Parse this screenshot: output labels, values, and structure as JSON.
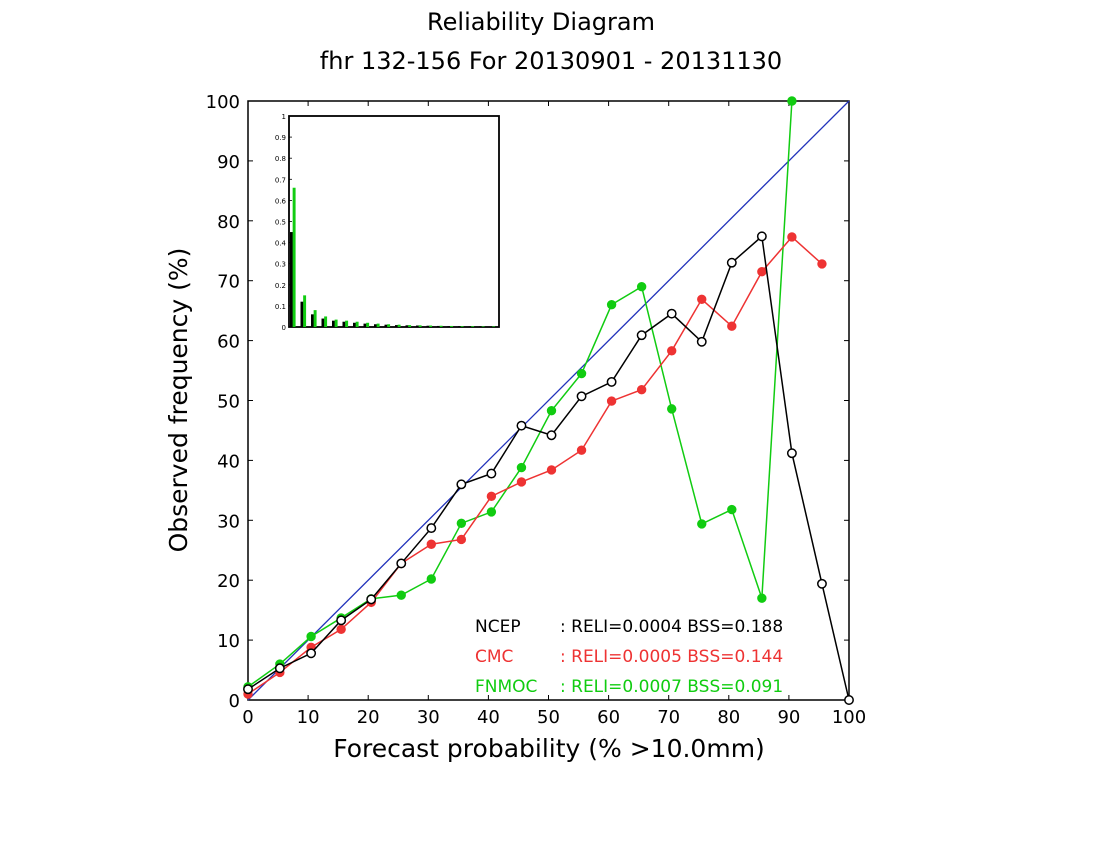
{
  "chart_data": {
    "type": "line",
    "title": "Reliability Diagram",
    "subtitle": "fhr 132-156 For 20130901 - 20131130",
    "xlabel": "Forecast probability (% >10.0mm)",
    "ylabel": "Observed frequency (%)",
    "xlim": [
      0,
      100
    ],
    "ylim": [
      0,
      100
    ],
    "xticks": [
      "0",
      "10",
      "20",
      "30",
      "40",
      "50",
      "60",
      "70",
      "80",
      "90",
      "100"
    ],
    "yticks": [
      "0",
      "10",
      "20",
      "30",
      "40",
      "50",
      "60",
      "70",
      "80",
      "90",
      "100"
    ],
    "diagonal_color": "#2233bb",
    "series": [
      {
        "name": "NCEP",
        "stats": ": RELI=0.0004  BSS=0.188",
        "color": "#000000",
        "marker": "open-circle",
        "x": [
          0,
          5.3,
          10.5,
          15.5,
          20.5,
          25.5,
          30.5,
          35.5,
          40.5,
          45.5,
          50.5,
          55.5,
          60.5,
          65.5,
          70.5,
          75.5,
          80.5,
          85.5,
          90.5,
          95.5,
          100
        ],
        "y": [
          1.8,
          5.3,
          7.8,
          13.3,
          16.8,
          22.8,
          28.7,
          36.0,
          37.8,
          45.8,
          44.2,
          50.7,
          53.1,
          60.9,
          64.5,
          59.8,
          73.0,
          77.4,
          41.2,
          19.4,
          0.0
        ]
      },
      {
        "name": "CMC",
        "stats": ": RELI=0.0005  BSS=0.144",
        "color": "#ee3333",
        "marker": "filled-circle",
        "x": [
          0,
          5.3,
          10.5,
          15.5,
          20.5,
          25.5,
          30.5,
          35.5,
          40.5,
          45.5,
          50.5,
          55.5,
          60.5,
          65.5,
          70.5,
          75.5,
          80.5,
          85.5,
          90.5,
          95.5
        ],
        "y": [
          1.0,
          4.6,
          8.8,
          11.8,
          16.3,
          22.8,
          26.0,
          26.8,
          34.0,
          36.4,
          38.4,
          41.7,
          49.9,
          51.8,
          58.3,
          66.9,
          62.4,
          71.5,
          77.3,
          72.8
        ]
      },
      {
        "name": "FNMOC",
        "stats": ": RELI=0.0007  BSS=0.091",
        "color": "#11cc11",
        "marker": "filled-circle",
        "x": [
          0,
          5.3,
          10.5,
          15.5,
          20.5,
          25.5,
          30.5,
          35.5,
          40.5,
          45.5,
          50.5,
          55.5,
          60.5,
          65.5,
          70.5,
          75.5,
          80.5,
          85.5,
          90.5
        ],
        "y": [
          2.2,
          6.0,
          10.6,
          13.7,
          16.9,
          17.5,
          20.2,
          29.5,
          31.4,
          38.8,
          48.3,
          54.5,
          66.0,
          69.0,
          48.6,
          29.4,
          31.8,
          17.0,
          100.0
        ]
      }
    ],
    "inset": {
      "type": "bar",
      "ylim": [
        0,
        1
      ],
      "yticks": [
        "0",
        "0.1",
        "0.2",
        "0.3",
        "0.4",
        "0.5",
        "0.6",
        "0.7",
        "0.8",
        "0.9",
        "1"
      ],
      "series": [
        {
          "name": "NCEP",
          "color": "#000000",
          "values": [
            0.45,
            0.12,
            0.06,
            0.04,
            0.03,
            0.025,
            0.02,
            0.016,
            0.013,
            0.011,
            0.009,
            0.008,
            0.007,
            0.006,
            0.005,
            0.004,
            0.004,
            0.003,
            0.003,
            0.002
          ]
        },
        {
          "name": "FNMOC",
          "color": "#11cc11",
          "values": [
            0.66,
            0.15,
            0.08,
            0.05,
            0.035,
            0.03,
            0.025,
            0.02,
            0.016,
            0.013,
            0.011,
            0.009,
            0.008,
            0.007,
            0.006,
            0.005,
            0.004,
            0.004,
            0.003,
            0.003
          ]
        }
      ]
    }
  }
}
